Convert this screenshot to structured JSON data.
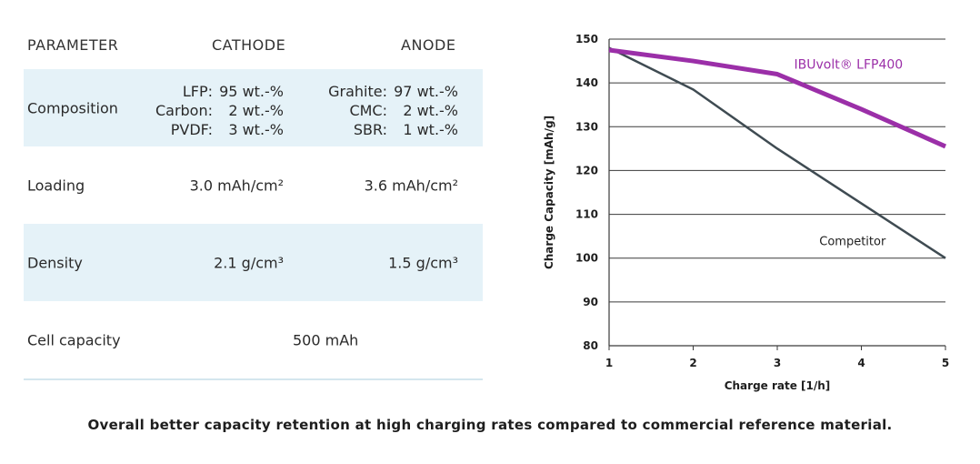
{
  "table": {
    "headers": {
      "parameter": "PARAMETER",
      "cathode": "CATHODE",
      "anode": "ANODE"
    },
    "composition": {
      "label": "Composition",
      "cathode": [
        {
          "name": "LFP:",
          "value": "95 wt.-%"
        },
        {
          "name": "Carbon:",
          "value": "2 wt.-%"
        },
        {
          "name": "PVDF:",
          "value": "3 wt.-%"
        }
      ],
      "anode": [
        {
          "name": "Grahite:",
          "value": "97 wt.-%"
        },
        {
          "name": "CMC:",
          "value": "2 wt.-%"
        },
        {
          "name": "SBR:",
          "value": "1 wt.-%"
        }
      ]
    },
    "loading": {
      "label": "Loading",
      "cathode": "3.0 mAh/cm²",
      "anode": "3.6 mAh/cm²"
    },
    "density": {
      "label": "Density",
      "cathode": "2.1 g/cm³",
      "anode": "1.5 g/cm³"
    },
    "cell_capacity": {
      "label": "Cell capacity",
      "value": "500 mAh"
    }
  },
  "caption": "Overall better capacity retention at high charging rates compared to commercial reference material.",
  "chart_data": {
    "type": "line",
    "xlabel": "Charge rate [1/h]",
    "ylabel": "Charge Capacity [mAh/g]",
    "xlim": [
      1,
      5
    ],
    "ylim": [
      80,
      150
    ],
    "xticks": [
      1,
      2,
      3,
      4,
      5
    ],
    "yticks": [
      80,
      90,
      100,
      110,
      120,
      130,
      140,
      150
    ],
    "grid": "horizontal",
    "series": [
      {
        "name": "IBUvolt® LFP400",
        "color": "#9b2fa8",
        "x": [
          1,
          2,
          3,
          4,
          5
        ],
        "y": [
          147.5,
          145,
          142,
          134,
          125.5
        ]
      },
      {
        "name": "Competitor",
        "color": "#3f4b52",
        "x": [
          1,
          2,
          3,
          4,
          5
        ],
        "y": [
          148,
          138.5,
          125,
          112.5,
          100
        ]
      }
    ]
  }
}
